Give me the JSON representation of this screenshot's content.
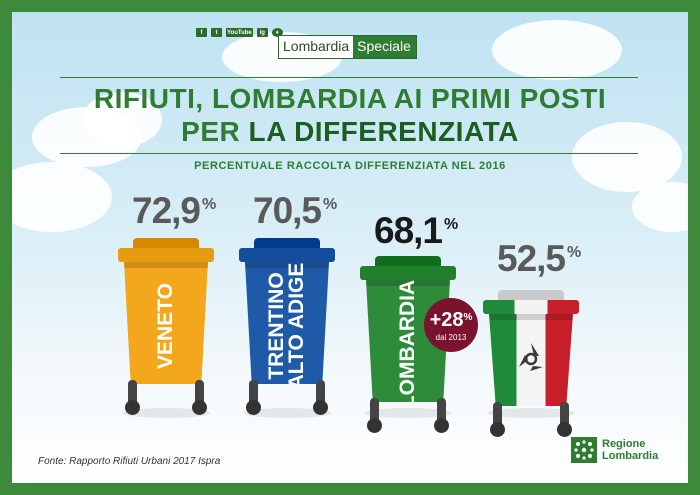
{
  "header": {
    "social": [
      "f",
      "t",
      "YouTube",
      "ig",
      "♦"
    ],
    "brand_left": "Lombardia",
    "brand_right": "Speciale"
  },
  "title": {
    "line1": "RIFIUTI, LOMBARDIA AI PRIMI POSTI",
    "line2_prefix": "PER ",
    "line2_emph": "LA DIFFERENZIATA"
  },
  "subtitle": "PERCENTUALE RACCOLTA DIFFERENZIATA NEL 2016",
  "chart_data": {
    "type": "bar",
    "title": "RIFIUTI, LOMBARDIA AI PRIMI POSTI PER LA DIFFERENZIATA",
    "subtitle": "PERCENTUALE RACCOLTA DIFFERENZIATA NEL 2016",
    "categories": [
      "VENETO",
      "TRENTINO ALTO ADIGE",
      "LOMBARDIA",
      "Italia"
    ],
    "values": [
      72.9,
      70.5,
      68.1,
      52.5
    ],
    "value_labels": [
      "72,9",
      "70,5",
      "68,1",
      "52,5"
    ],
    "unit": "%",
    "category_labels": [
      [
        "VENETO"
      ],
      [
        "TRENTINO",
        "ALTO ADIGE"
      ],
      [
        "LOMBARDIA"
      ],
      []
    ],
    "colors": [
      "#f3a71c",
      "#1e5aa8",
      "#2e8b3a",
      "tricolore"
    ],
    "value_colors": [
      "#5a5a5a",
      "#5a5a5a",
      "#1a1a1a",
      "#5a5a5a"
    ],
    "annotation": {
      "value": "+28",
      "unit": "%",
      "note": "dal 2013"
    }
  },
  "footer": {
    "source": "Fonte: Rapporto Rifiuti Urbani 2017 Ispra",
    "logo_line1": "Regione",
    "logo_line2": "Lombardia"
  }
}
